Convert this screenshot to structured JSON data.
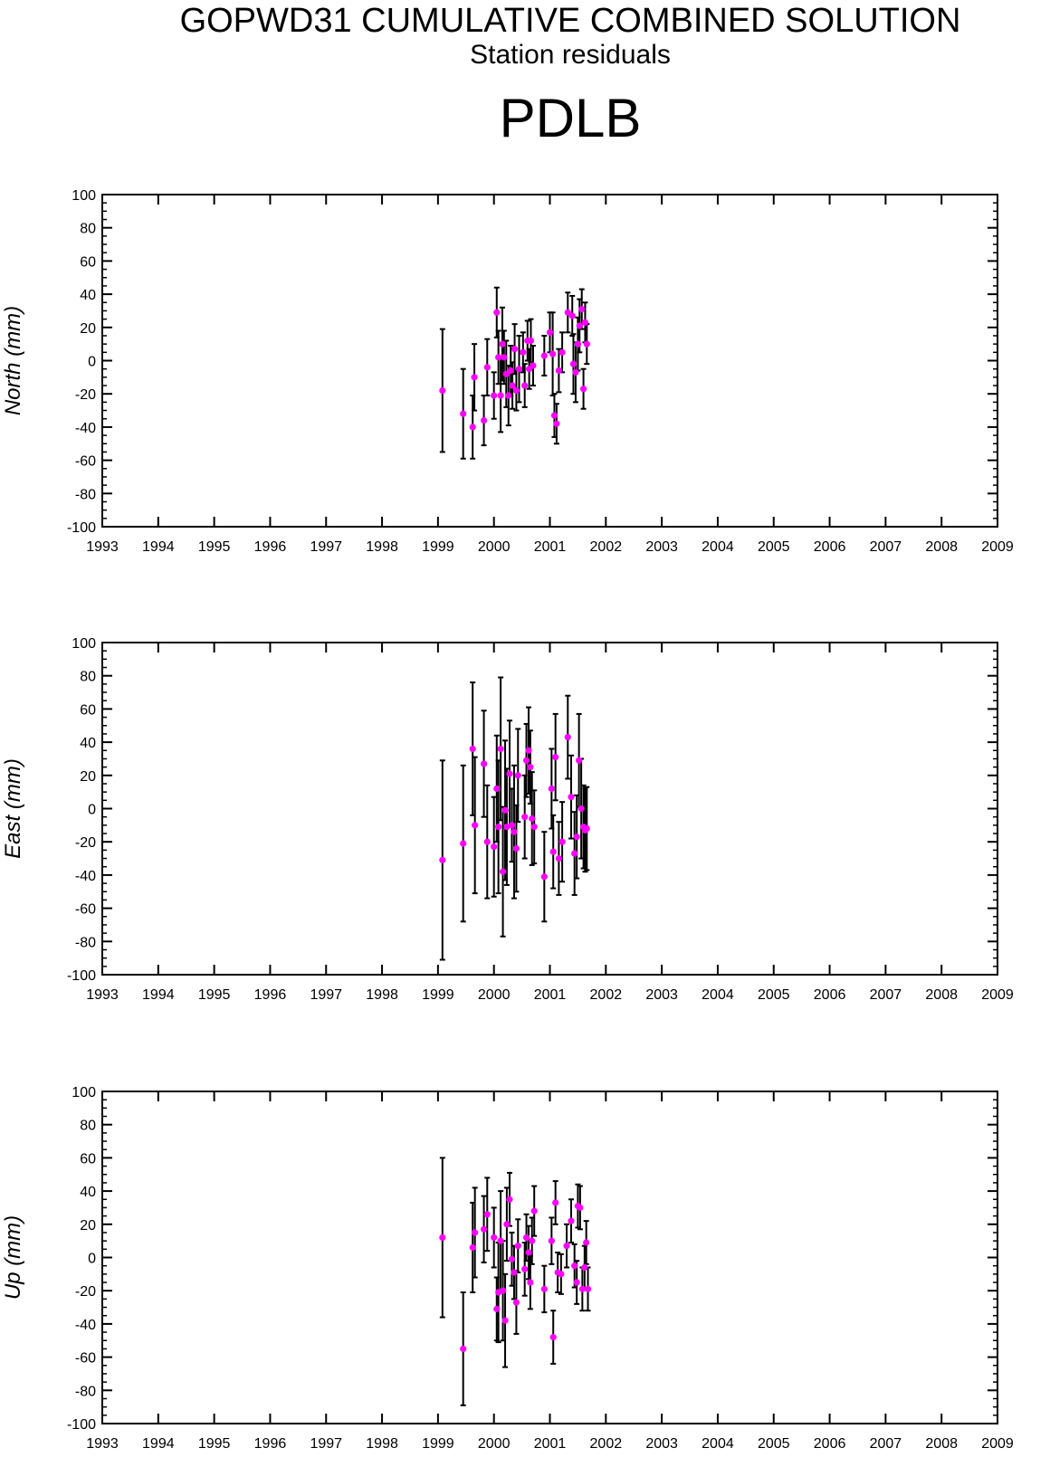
{
  "header": {
    "title": "GOPWD31 CUMULATIVE COMBINED SOLUTION",
    "subtitle": "Station residuals",
    "station": "PDLB"
  },
  "colors": {
    "point": "#ff00ff",
    "errorbar": "#000000",
    "axis": "#000000"
  },
  "chart_data": [
    {
      "type": "scatter",
      "ylabel": "North (mm)",
      "xlabel": "",
      "xlim": [
        1993,
        2009
      ],
      "ylim": [
        -100,
        100
      ],
      "x_ticks": [
        "1993",
        "1994",
        "1995",
        "1996",
        "1997",
        "1998",
        "1999",
        "2000",
        "2001",
        "2002",
        "2003",
        "2004",
        "2005",
        "2006",
        "2007",
        "2008",
        "2009"
      ],
      "y_ticks": [
        "100",
        "80",
        "60",
        "40",
        "20",
        "0",
        "-20",
        "-40",
        "-60",
        "-80",
        "-100"
      ],
      "points": [
        {
          "x": 1999.08,
          "y": -18,
          "err": 37
        },
        {
          "x": 1999.45,
          "y": -32,
          "err": 27
        },
        {
          "x": 1999.62,
          "y": -40,
          "err": 19
        },
        {
          "x": 1999.65,
          "y": -10,
          "err": 20
        },
        {
          "x": 1999.82,
          "y": -36,
          "err": 15
        },
        {
          "x": 1999.88,
          "y": -4,
          "err": 17
        },
        {
          "x": 2000.0,
          "y": -21,
          "err": 14
        },
        {
          "x": 2000.05,
          "y": 29,
          "err": 15
        },
        {
          "x": 2000.08,
          "y": 2,
          "err": 16
        },
        {
          "x": 2000.12,
          "y": -21,
          "err": 22
        },
        {
          "x": 2000.15,
          "y": 10,
          "err": 22
        },
        {
          "x": 2000.18,
          "y": 2,
          "err": 16
        },
        {
          "x": 2000.22,
          "y": -8,
          "err": 20
        },
        {
          "x": 2000.26,
          "y": -21,
          "err": 18
        },
        {
          "x": 2000.3,
          "y": -6,
          "err": 15
        },
        {
          "x": 2000.33,
          "y": -15,
          "err": 14
        },
        {
          "x": 2000.37,
          "y": 7,
          "err": 15
        },
        {
          "x": 2000.4,
          "y": -18,
          "err": 12
        },
        {
          "x": 2000.45,
          "y": -5,
          "err": 20
        },
        {
          "x": 2000.55,
          "y": -15,
          "err": 13
        },
        {
          "x": 2000.6,
          "y": 12,
          "err": 12
        },
        {
          "x": 2000.63,
          "y": -5,
          "err": 12
        },
        {
          "x": 2000.66,
          "y": 12,
          "err": 13
        },
        {
          "x": 2000.7,
          "y": -3,
          "err": 12
        },
        {
          "x": 2000.9,
          "y": 3,
          "err": 12
        },
        {
          "x": 2001.05,
          "y": 4,
          "err": 25
        },
        {
          "x": 2001.08,
          "y": -33,
          "err": 13
        },
        {
          "x": 2001.12,
          "y": -38,
          "err": 12
        },
        {
          "x": 2001.16,
          "y": -6,
          "err": 13
        },
        {
          "x": 2001.22,
          "y": 5,
          "err": 12
        },
        {
          "x": 2001.32,
          "y": 29,
          "err": 12
        },
        {
          "x": 2001.42,
          "y": -2,
          "err": 18
        },
        {
          "x": 2001.46,
          "y": -7,
          "err": 18
        },
        {
          "x": 2001.5,
          "y": 10,
          "err": 16
        },
        {
          "x": 2001.53,
          "y": 21,
          "err": 16
        },
        {
          "x": 2001.57,
          "y": 31,
          "err": 12
        },
        {
          "x": 2001.6,
          "y": -17,
          "err": 12
        },
        {
          "x": 2001.63,
          "y": 23,
          "err": 12
        },
        {
          "x": 2001.66,
          "y": 10,
          "err": 12
        },
        {
          "x": 2001.4,
          "y": 27,
          "err": 12
        },
        {
          "x": 2001.0,
          "y": 17,
          "err": 12
        },
        {
          "x": 2000.52,
          "y": 5,
          "err": 12
        }
      ]
    },
    {
      "type": "scatter",
      "ylabel": "East (mm)",
      "xlabel": "",
      "xlim": [
        1993,
        2009
      ],
      "ylim": [
        -100,
        100
      ],
      "x_ticks": [
        "1993",
        "1994",
        "1995",
        "1996",
        "1997",
        "1998",
        "1999",
        "2000",
        "2001",
        "2002",
        "2003",
        "2004",
        "2005",
        "2006",
        "2007",
        "2008",
        "2009"
      ],
      "y_ticks": [
        "100",
        "80",
        "60",
        "40",
        "20",
        "0",
        "-20",
        "-40",
        "-60",
        "-80",
        "-100"
      ],
      "points": [
        {
          "x": 1999.08,
          "y": -31,
          "err": 60
        },
        {
          "x": 1999.45,
          "y": -21,
          "err": 47
        },
        {
          "x": 1999.62,
          "y": 36,
          "err": 40
        },
        {
          "x": 1999.66,
          "y": -10,
          "err": 41
        },
        {
          "x": 1999.82,
          "y": 27,
          "err": 32
        },
        {
          "x": 1999.88,
          "y": -20,
          "err": 34
        },
        {
          "x": 2000.0,
          "y": -23,
          "err": 30
        },
        {
          "x": 2000.05,
          "y": 12,
          "err": 32
        },
        {
          "x": 2000.08,
          "y": -11,
          "err": 40
        },
        {
          "x": 2000.12,
          "y": 36,
          "err": 43
        },
        {
          "x": 2000.16,
          "y": -38,
          "err": 39
        },
        {
          "x": 2000.2,
          "y": -1,
          "err": 42
        },
        {
          "x": 2000.23,
          "y": -11,
          "err": 35
        },
        {
          "x": 2000.28,
          "y": 21,
          "err": 32
        },
        {
          "x": 2000.32,
          "y": -10,
          "err": 22
        },
        {
          "x": 2000.36,
          "y": -14,
          "err": 40
        },
        {
          "x": 2000.4,
          "y": -24,
          "err": 26
        },
        {
          "x": 2000.43,
          "y": 20,
          "err": 28
        },
        {
          "x": 2000.55,
          "y": -5,
          "err": 25
        },
        {
          "x": 2000.58,
          "y": 29,
          "err": 22
        },
        {
          "x": 2000.62,
          "y": 35,
          "err": 26
        },
        {
          "x": 2000.65,
          "y": 25,
          "err": 22
        },
        {
          "x": 2000.68,
          "y": -6,
          "err": 28
        },
        {
          "x": 2000.72,
          "y": -11,
          "err": 22
        },
        {
          "x": 2000.9,
          "y": -41,
          "err": 27
        },
        {
          "x": 2001.03,
          "y": 12,
          "err": 24
        },
        {
          "x": 2001.06,
          "y": -26,
          "err": 22
        },
        {
          "x": 2001.1,
          "y": 31,
          "err": 26
        },
        {
          "x": 2001.16,
          "y": -30,
          "err": 22
        },
        {
          "x": 2001.22,
          "y": -20,
          "err": 24
        },
        {
          "x": 2001.32,
          "y": 43,
          "err": 25
        },
        {
          "x": 2001.38,
          "y": 7,
          "err": 25
        },
        {
          "x": 2001.44,
          "y": -27,
          "err": 25
        },
        {
          "x": 2001.48,
          "y": -17,
          "err": 25
        },
        {
          "x": 2001.52,
          "y": 29,
          "err": 28
        },
        {
          "x": 2001.56,
          "y": 0,
          "err": 30
        },
        {
          "x": 2001.6,
          "y": -11,
          "err": 25
        },
        {
          "x": 2001.63,
          "y": -13,
          "err": 25
        },
        {
          "x": 2001.66,
          "y": -12,
          "err": 25
        }
      ]
    },
    {
      "type": "scatter",
      "ylabel": "Up (mm)",
      "xlabel": "",
      "xlim": [
        1993,
        2009
      ],
      "ylim": [
        -100,
        100
      ],
      "x_ticks": [
        "1993",
        "1994",
        "1995",
        "1996",
        "1997",
        "1998",
        "1999",
        "2000",
        "2001",
        "2002",
        "2003",
        "2004",
        "2005",
        "2006",
        "2007",
        "2008",
        "2009"
      ],
      "y_ticks": [
        "100",
        "80",
        "60",
        "40",
        "20",
        "0",
        "-20",
        "-40",
        "-60",
        "-80",
        "-100"
      ],
      "points": [
        {
          "x": 1999.08,
          "y": 12,
          "err": 48
        },
        {
          "x": 1999.45,
          "y": -55,
          "err": 34
        },
        {
          "x": 1999.62,
          "y": 6,
          "err": 27
        },
        {
          "x": 1999.66,
          "y": 15,
          "err": 27
        },
        {
          "x": 1999.82,
          "y": 17,
          "err": 20
        },
        {
          "x": 1999.88,
          "y": 26,
          "err": 22
        },
        {
          "x": 2000.0,
          "y": 12,
          "err": 18
        },
        {
          "x": 2000.05,
          "y": -31,
          "err": 19
        },
        {
          "x": 2000.08,
          "y": -21,
          "err": 30
        },
        {
          "x": 2000.12,
          "y": 10,
          "err": 30
        },
        {
          "x": 2000.16,
          "y": -20,
          "err": 30
        },
        {
          "x": 2000.2,
          "y": -38,
          "err": 28
        },
        {
          "x": 2000.23,
          "y": 20,
          "err": 22
        },
        {
          "x": 2000.28,
          "y": 35,
          "err": 16
        },
        {
          "x": 2000.32,
          "y": -1,
          "err": 16
        },
        {
          "x": 2000.36,
          "y": -9,
          "err": 16
        },
        {
          "x": 2000.4,
          "y": -27,
          "err": 19
        },
        {
          "x": 2000.43,
          "y": 7,
          "err": 16
        },
        {
          "x": 2000.55,
          "y": -7,
          "err": 16
        },
        {
          "x": 2000.58,
          "y": 12,
          "err": 14
        },
        {
          "x": 2000.62,
          "y": 3,
          "err": 16
        },
        {
          "x": 2000.65,
          "y": -15,
          "err": 16
        },
        {
          "x": 2000.68,
          "y": 10,
          "err": 14
        },
        {
          "x": 2000.72,
          "y": 28,
          "err": 15
        },
        {
          "x": 2000.9,
          "y": -19,
          "err": 14
        },
        {
          "x": 2001.03,
          "y": 10,
          "err": 14
        },
        {
          "x": 2001.06,
          "y": -48,
          "err": 16
        },
        {
          "x": 2001.1,
          "y": 33,
          "err": 13
        },
        {
          "x": 2001.14,
          "y": -9,
          "err": 12
        },
        {
          "x": 2001.2,
          "y": -10,
          "err": 12
        },
        {
          "x": 2001.3,
          "y": 7,
          "err": 13
        },
        {
          "x": 2001.38,
          "y": 22,
          "err": 13
        },
        {
          "x": 2001.44,
          "y": -5,
          "err": 13
        },
        {
          "x": 2001.48,
          "y": -15,
          "err": 13
        },
        {
          "x": 2001.5,
          "y": 31,
          "err": 13
        },
        {
          "x": 2001.54,
          "y": 30,
          "err": 13
        },
        {
          "x": 2001.58,
          "y": -19,
          "err": 13
        },
        {
          "x": 2001.62,
          "y": -6,
          "err": 13
        },
        {
          "x": 2001.65,
          "y": 9,
          "err": 13
        },
        {
          "x": 2001.68,
          "y": -19,
          "err": 13
        }
      ]
    }
  ]
}
